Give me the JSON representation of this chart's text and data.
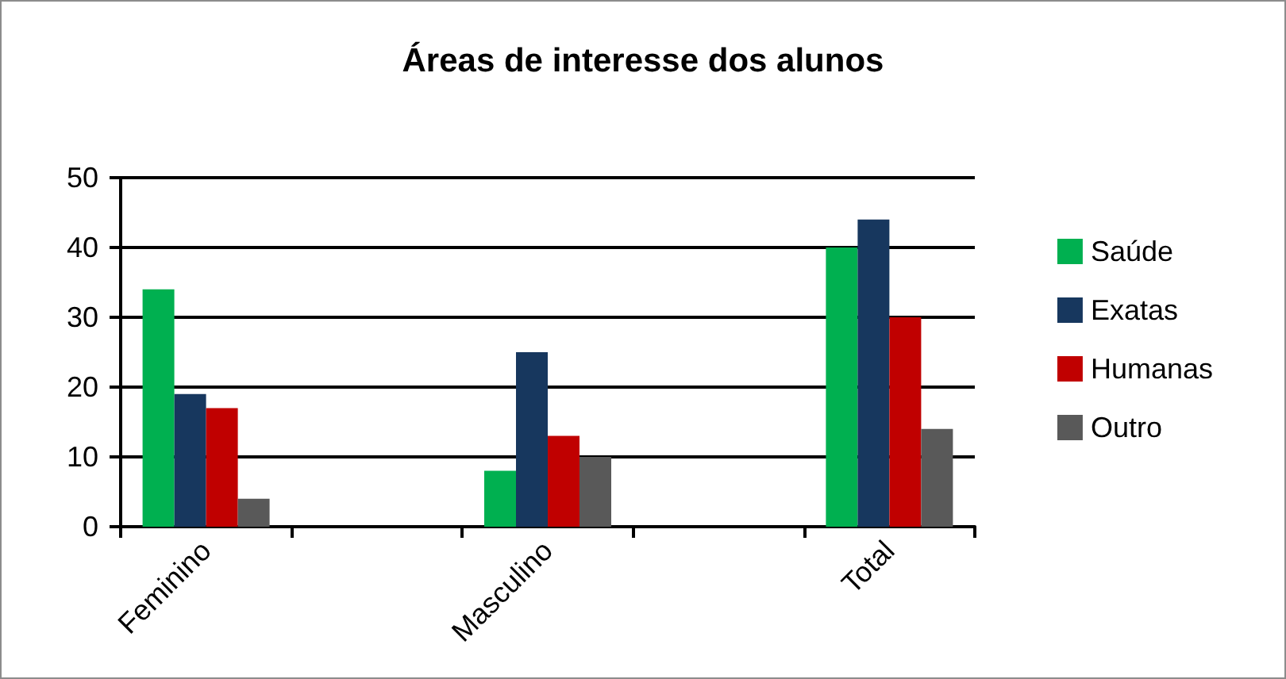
{
  "chart_data": {
    "type": "bar",
    "title": "Áreas de interesse dos alunos",
    "categories": [
      "Feminino",
      null,
      "Masculino",
      null,
      "Total"
    ],
    "series": [
      {
        "name": "Saúde",
        "color": "#00b050",
        "values": [
          34,
          null,
          8,
          null,
          40
        ]
      },
      {
        "name": "Exatas",
        "color": "#17375e",
        "values": [
          19,
          null,
          25,
          null,
          44
        ]
      },
      {
        "name": "Humanas",
        "color": "#c00000",
        "values": [
          17,
          null,
          13,
          null,
          30
        ]
      },
      {
        "name": "Outro",
        "color": "#595959",
        "values": [
          4,
          null,
          10,
          null,
          14
        ]
      }
    ],
    "ylim": [
      0,
      50
    ],
    "yticks": [
      0,
      10,
      20,
      30,
      40,
      50
    ],
    "grid": "y",
    "legend": "right"
  }
}
